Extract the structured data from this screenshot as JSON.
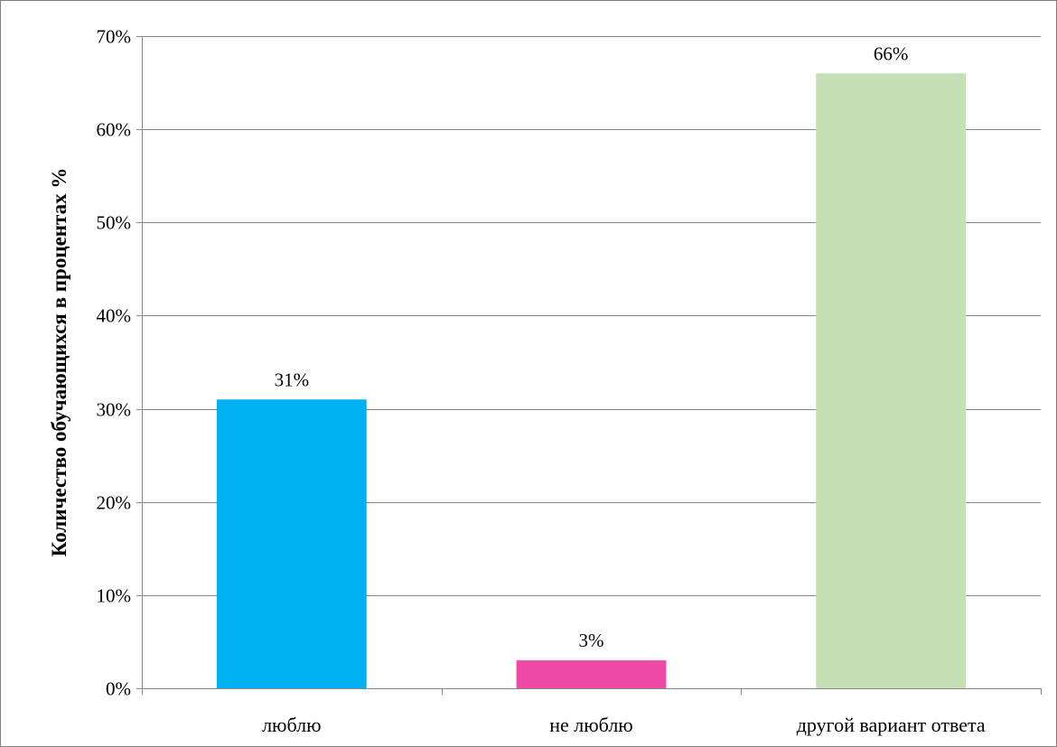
{
  "chart_data": {
    "type": "bar",
    "title": "",
    "xlabel": "",
    "ylabel": "Количество обучающихся в процентах %",
    "categories": [
      "люблю",
      "не люблю",
      "другой вариант ответа"
    ],
    "values": [
      31,
      3,
      66
    ],
    "data_labels": [
      "31%",
      "3%",
      "66%"
    ],
    "bar_colors": [
      "#00b0f0",
      "#f04aa8",
      "#c4e0b4"
    ],
    "ylim": [
      0,
      70
    ],
    "yticks": [
      0,
      10,
      20,
      30,
      40,
      50,
      60,
      70
    ],
    "ytick_labels": [
      "0%",
      "10%",
      "20%",
      "30%",
      "40%",
      "50%",
      "60%",
      "70%"
    ],
    "grid": true,
    "legend": "none"
  }
}
